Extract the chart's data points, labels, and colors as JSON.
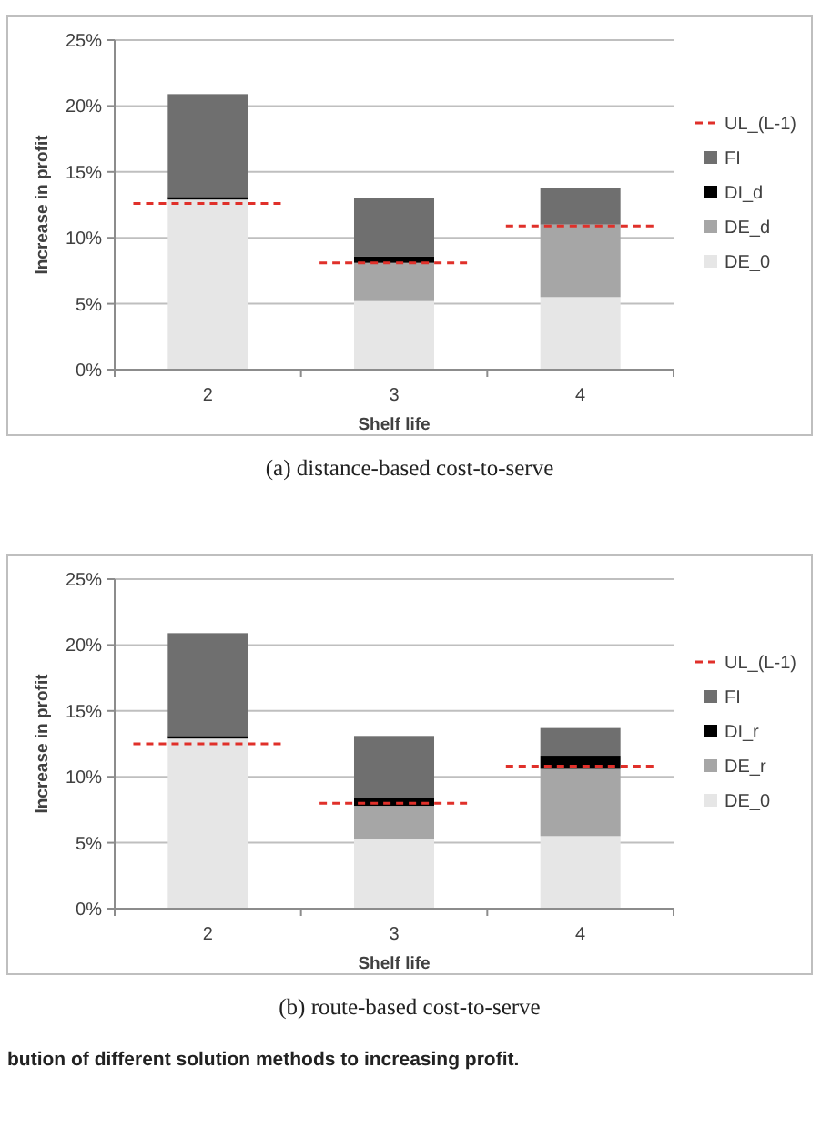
{
  "chart_data": [
    {
      "type": "bar",
      "stacked": true,
      "subtitle": "(a) distance-based cost-to-serve",
      "xlabel": "Shelf life",
      "ylabel": "Increase in profit",
      "categories": [
        "2",
        "3",
        "4"
      ],
      "ylim": [
        0,
        25
      ],
      "yticks": [
        {
          "value": 0,
          "label": "0%"
        },
        {
          "value": 5,
          "label": "5%"
        },
        {
          "value": 10,
          "label": "10%"
        },
        {
          "value": 15,
          "label": "15%"
        },
        {
          "value": 20,
          "label": "20%"
        },
        {
          "value": 25,
          "label": "25%"
        }
      ],
      "grid": "y",
      "legend": "right",
      "series": [
        {
          "name": "DE_0",
          "color": "#e6e6e6",
          "values": [
            12.9,
            5.2,
            5.5
          ]
        },
        {
          "name": "DE_d",
          "color": "#a6a6a6",
          "values": [
            0,
            2.9,
            5.5
          ]
        },
        {
          "name": "DI_d",
          "color": "#000000",
          "values": [
            0.2,
            0.5,
            0
          ]
        },
        {
          "name": "FI",
          "color": "#6f6f6f",
          "values": [
            7.8,
            4.4,
            2.8
          ]
        }
      ],
      "ref_lines": [
        {
          "axis": "y",
          "value": 12.6,
          "label": "UL_(L-1)",
          "color": "#e0302a",
          "line_style": "dashed"
        },
        {
          "axis": "y",
          "value": 8.1,
          "color": "#e0302a",
          "line_style": "dashed"
        },
        {
          "axis": "y",
          "value": 10.9,
          "color": "#e0302a",
          "line_style": "dashed"
        }
      ]
    },
    {
      "type": "bar",
      "stacked": true,
      "subtitle": "(b) route-based cost-to-serve",
      "xlabel": "Shelf life",
      "ylabel": "Increase in profit",
      "categories": [
        "2",
        "3",
        "4"
      ],
      "ylim": [
        0,
        25
      ],
      "yticks": [
        {
          "value": 0,
          "label": "0%"
        },
        {
          "value": 5,
          "label": "5%"
        },
        {
          "value": 10,
          "label": "10%"
        },
        {
          "value": 15,
          "label": "15%"
        },
        {
          "value": 20,
          "label": "20%"
        },
        {
          "value": 25,
          "label": "25%"
        }
      ],
      "grid": "y",
      "legend": "right",
      "annotations": [
        "bution of different solution methods to increasing profit."
      ],
      "series": [
        {
          "name": "DE_0",
          "color": "#e6e6e6",
          "values": [
            12.9,
            5.3,
            5.5
          ]
        },
        {
          "name": "DE_r",
          "color": "#a6a6a6",
          "values": [
            0,
            2.5,
            5.1
          ]
        },
        {
          "name": "DI_r",
          "color": "#000000",
          "values": [
            0.2,
            0.6,
            1.0
          ]
        },
        {
          "name": "FI",
          "color": "#6f6f6f",
          "values": [
            7.8,
            4.7,
            2.1
          ]
        }
      ],
      "ref_lines": [
        {
          "axis": "y",
          "value": 12.5,
          "label": "UL_(L-1)",
          "color": "#e0302a",
          "line_style": "dashed"
        },
        {
          "axis": "y",
          "value": 8.0,
          "color": "#e0302a",
          "line_style": "dashed"
        },
        {
          "axis": "y",
          "value": 10.8,
          "color": "#e0302a",
          "line_style": "dashed"
        }
      ]
    }
  ]
}
